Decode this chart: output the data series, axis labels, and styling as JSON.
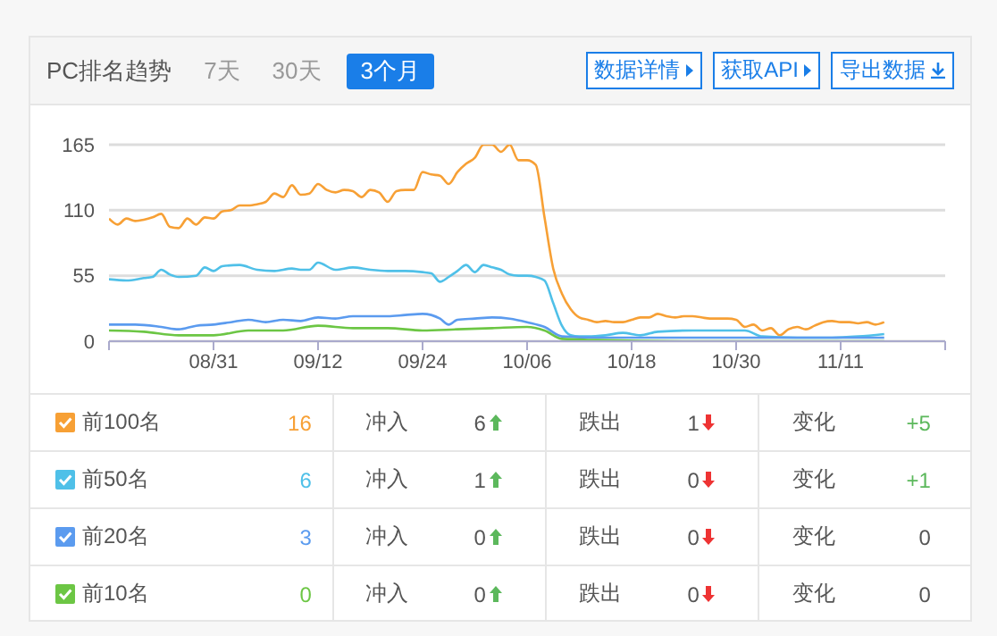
{
  "chart_data": {
    "type": "line",
    "title": "PC排名趋势",
    "marker": "none",
    "grid": "y",
    "legend": "bottom",
    "xlim": [
      "--08-19",
      "--11-23"
    ],
    "xticks": [
      {
        "value": "--08-19",
        "label": null
      },
      {
        "value": "--08-31",
        "label": "08/31"
      },
      {
        "value": "--09-12",
        "label": "09/12"
      },
      {
        "value": "--09-24",
        "label": "09/24"
      },
      {
        "value": "--10-06",
        "label": "10/06"
      },
      {
        "value": "--10-18",
        "label": "10/18"
      },
      {
        "value": "--10-30",
        "label": "10/30"
      },
      {
        "value": "--11-11",
        "label": "11/11"
      },
      {
        "value": "--11-23",
        "label": null
      }
    ],
    "ylim": [
      0,
      165
    ],
    "yticks": [
      0,
      55,
      110,
      165
    ],
    "series": [
      {
        "name": "前100名",
        "color": "#f7a035",
        "x": [
          "--08-19",
          "--08-20",
          "--08-21",
          "--08-22",
          "--08-23",
          "--08-24",
          "--08-25",
          "--08-26",
          "--08-27",
          "--08-28",
          "--08-29",
          "--08-30",
          "--08-31",
          "--09-01",
          "--09-02",
          "--09-03",
          "--09-04",
          "--09-05",
          "--09-06",
          "--09-07",
          "--09-08",
          "--09-09",
          "--09-10",
          "--09-11",
          "--09-12",
          "--09-13",
          "--09-14",
          "--09-15",
          "--09-16",
          "--09-17",
          "--09-18",
          "--09-19",
          "--09-20",
          "--09-21",
          "--09-22",
          "--09-23",
          "--09-24",
          "--09-25",
          "--09-26",
          "--09-27",
          "--09-28",
          "--09-29",
          "--09-30",
          "--10-01",
          "--10-02",
          "--10-03",
          "--10-04",
          "--10-05",
          "--10-06",
          "--10-07",
          "--10-08",
          "--10-09",
          "--10-10",
          "--10-11",
          "--10-12",
          "--10-13",
          "--10-14",
          "--10-15",
          "--10-16",
          "--10-17",
          "--10-18",
          "--10-19",
          "--10-20",
          "--10-21",
          "--10-22",
          "--10-23",
          "--10-24",
          "--10-25",
          "--10-26",
          "--10-27",
          "--10-28",
          "--10-29",
          "--10-30",
          "--10-31",
          "--11-01",
          "--11-02",
          "--11-03",
          "--11-04",
          "--11-05",
          "--11-06",
          "--11-07",
          "--11-08",
          "--11-09",
          "--11-10",
          "--11-11",
          "--11-12",
          "--11-13",
          "--11-14",
          "--11-15",
          "--11-16"
        ],
        "values": [
          103,
          98,
          103,
          101,
          102,
          104,
          107,
          96,
          95,
          103,
          98,
          104,
          103,
          109,
          110,
          114,
          114,
          115,
          117,
          124,
          121,
          131,
          123,
          124,
          132,
          127,
          125,
          127,
          126,
          121,
          127,
          125,
          117,
          126,
          127,
          127,
          142,
          140,
          139,
          132,
          142,
          149,
          154,
          165,
          165,
          159,
          165,
          152,
          152,
          148,
          104,
          61,
          40,
          27,
          20,
          18,
          16,
          17,
          16,
          16,
          18,
          20,
          20,
          23,
          21,
          20,
          21,
          21,
          20,
          19,
          19,
          19,
          18,
          12,
          14,
          9,
          11,
          5,
          10,
          12,
          10,
          13,
          16,
          17,
          16,
          16,
          15,
          16,
          14,
          16
        ]
      },
      {
        "name": "前50名",
        "color": "#4fc0e8",
        "x": [
          "--08-19",
          "--08-21",
          "--08-23",
          "--08-24",
          "--08-25",
          "--08-26",
          "--08-27",
          "--08-29",
          "--08-30",
          "--08-31",
          "--09-01",
          "--09-03",
          "--09-05",
          "--09-07",
          "--09-09",
          "--09-10",
          "--09-11",
          "--09-12",
          "--09-14",
          "--09-16",
          "--09-18",
          "--09-20",
          "--09-22",
          "--09-24",
          "--09-25",
          "--09-26",
          "--09-27",
          "--09-28",
          "--09-29",
          "--09-30",
          "--10-01",
          "--10-02",
          "--10-03",
          "--10-04",
          "--10-05",
          "--10-06",
          "--10-07",
          "--10-08",
          "--10-09",
          "--10-10",
          "--10-11",
          "--10-12",
          "--10-13",
          "--10-15",
          "--10-17",
          "--10-19",
          "--10-21",
          "--10-25",
          "--10-29",
          "--10-31",
          "--11-02",
          "--11-06",
          "--11-10",
          "--11-13",
          "--11-16"
        ],
        "values": [
          52,
          51,
          53,
          54,
          60,
          56,
          54,
          55,
          62,
          59,
          63,
          64,
          60,
          59,
          61,
          60,
          60,
          66,
          60,
          62,
          60,
          59,
          59,
          58,
          57,
          50,
          54,
          59,
          64,
          58,
          64,
          62,
          60,
          56,
          55,
          55,
          54,
          51,
          32,
          13,
          5,
          4,
          4,
          5,
          7,
          5,
          8,
          9,
          9,
          9,
          4,
          3,
          3,
          4,
          6
        ]
      },
      {
        "name": "前20名",
        "color": "#5b9bef",
        "x": [
          "--08-19",
          "--08-22",
          "--08-25",
          "--08-27",
          "--08-29",
          "--08-31",
          "--09-02",
          "--09-04",
          "--09-06",
          "--09-08",
          "--09-10",
          "--09-12",
          "--09-14",
          "--09-16",
          "--09-18",
          "--09-20",
          "--09-22",
          "--09-24",
          "--09-26",
          "--09-27",
          "--09-28",
          "--09-30",
          "--10-02",
          "--10-04",
          "--10-06",
          "--10-08",
          "--10-10",
          "--10-14",
          "--10-20",
          "--10-28",
          "--11-05",
          "--11-16"
        ],
        "values": [
          14,
          14,
          12,
          10,
          13,
          14,
          16,
          18,
          16,
          18,
          17,
          20,
          19,
          21,
          21,
          21,
          22,
          23,
          19,
          14,
          18,
          19,
          20,
          19,
          16,
          12,
          4,
          3,
          3,
          3,
          3,
          3
        ]
      },
      {
        "name": "前10名",
        "color": "#6cc644",
        "x": [
          "--08-19",
          "--08-23",
          "--08-27",
          "--08-31",
          "--09-04",
          "--09-08",
          "--09-12",
          "--09-16",
          "--09-20",
          "--09-24",
          "--09-28",
          "--10-02",
          "--10-06",
          "--10-08",
          "--10-10",
          "--10-14",
          "--10-24",
          "--11-16"
        ],
        "values": [
          9,
          8,
          5,
          5,
          9,
          9,
          13,
          11,
          11,
          9,
          10,
          11,
          12,
          9,
          2,
          1,
          0,
          0
        ]
      }
    ],
    "annotations": [
      "7天",
      "30天",
      "3个月",
      "数据详情",
      "获取API",
      "导出数据",
      "16",
      "冲入",
      "6",
      "跌出",
      "1",
      "变化",
      "+5",
      "6",
      "冲入",
      "1",
      "跌出",
      "0",
      "变化",
      "+1",
      "3",
      "冲入",
      "0",
      "跌出",
      "0",
      "变化",
      "0",
      "0",
      "冲入",
      "0",
      "跌出",
      "0",
      "变化",
      "0"
    ]
  }
}
